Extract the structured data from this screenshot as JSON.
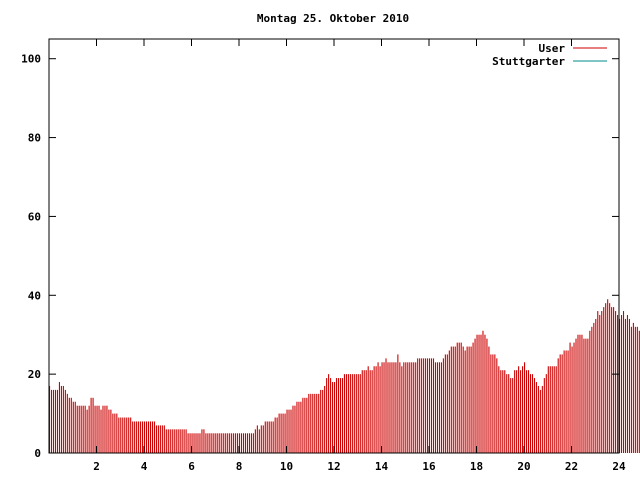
{
  "chart_data": {
    "type": "bar",
    "title": "Montag 25. Oktober 2010",
    "xlabel": "",
    "ylabel": "",
    "xlim": [
      0,
      24
    ],
    "ylim": [
      0,
      105
    ],
    "x_ticks": [
      2,
      4,
      6,
      8,
      10,
      12,
      14,
      16,
      18,
      20,
      22,
      24
    ],
    "y_ticks": [
      0,
      20,
      40,
      60,
      80,
      100
    ],
    "grid": false,
    "legend_position": "top-right",
    "series": [
      {
        "name": "User",
        "color": "#cc0000",
        "bar_width_minutes": 5,
        "x_unit": "hour of day",
        "x_start": 0,
        "x_step": 0.08333,
        "values": [
          17,
          16,
          16,
          16,
          16,
          18,
          17,
          17,
          16,
          15,
          14,
          14,
          13,
          13,
          12,
          12,
          12,
          12,
          12,
          11,
          12,
          14,
          14,
          12,
          12,
          12,
          11,
          12,
          12,
          12,
          11,
          11,
          10,
          10,
          10,
          9,
          9,
          9,
          9,
          9,
          9,
          9,
          8,
          8,
          8,
          8,
          8,
          8,
          8,
          8,
          8,
          8,
          8,
          8,
          7,
          7,
          7,
          7,
          7,
          6,
          6,
          6,
          6,
          6,
          6,
          6,
          6,
          6,
          6,
          6,
          5,
          5,
          5,
          5,
          5,
          5,
          5,
          6,
          6,
          5,
          5,
          5,
          5,
          5,
          5,
          5,
          5,
          5,
          5,
          5,
          5,
          5,
          5,
          5,
          5,
          5,
          5,
          5,
          5,
          5,
          5,
          5,
          5,
          5,
          6,
          7,
          6,
          7,
          7,
          8,
          8,
          8,
          8,
          8,
          9,
          9,
          10,
          10,
          10,
          10,
          11,
          11,
          11,
          12,
          12,
          13,
          13,
          13,
          14,
          14,
          14,
          15,
          15,
          15,
          15,
          15,
          15,
          16,
          16,
          17,
          19,
          20,
          19,
          18,
          18,
          19,
          19,
          19,
          19,
          20,
          20,
          20,
          20,
          20,
          20,
          20,
          20,
          20,
          21,
          21,
          21,
          22,
          21,
          21,
          22,
          22,
          23,
          22,
          23,
          23,
          24,
          23,
          23,
          23,
          23,
          23,
          25,
          23,
          22,
          23,
          23,
          23,
          23,
          23,
          23,
          23,
          24,
          24,
          24,
          24,
          24,
          24,
          24,
          24,
          24,
          23,
          23,
          23,
          23,
          24,
          25,
          25,
          26,
          27,
          27,
          27,
          28,
          28,
          28,
          27,
          26,
          27,
          27,
          27,
          28,
          29,
          30,
          30,
          30,
          31,
          30,
          29,
          27,
          25,
          25,
          25,
          24,
          22,
          21,
          21,
          21,
          20,
          20,
          19,
          19,
          21,
          21,
          22,
          21,
          22,
          23,
          21,
          21,
          20,
          20,
          19,
          18,
          17,
          16,
          17,
          19,
          20,
          22,
          22,
          22,
          22,
          22,
          24,
          25,
          25,
          26,
          26,
          26,
          28,
          27,
          28,
          29,
          30,
          30,
          30,
          29,
          29,
          29,
          31,
          32,
          33,
          34,
          36,
          35,
          36,
          37,
          38,
          39,
          38,
          37,
          37,
          36,
          35,
          34,
          35,
          36,
          34,
          35,
          34,
          32,
          33,
          32,
          32,
          31,
          31,
          31,
          30,
          28,
          28,
          26,
          26,
          27,
          28,
          28,
          26,
          28,
          27
        ]
      },
      {
        "name": "Stuttgarter",
        "color": "#008b8b",
        "values": []
      }
    ]
  }
}
